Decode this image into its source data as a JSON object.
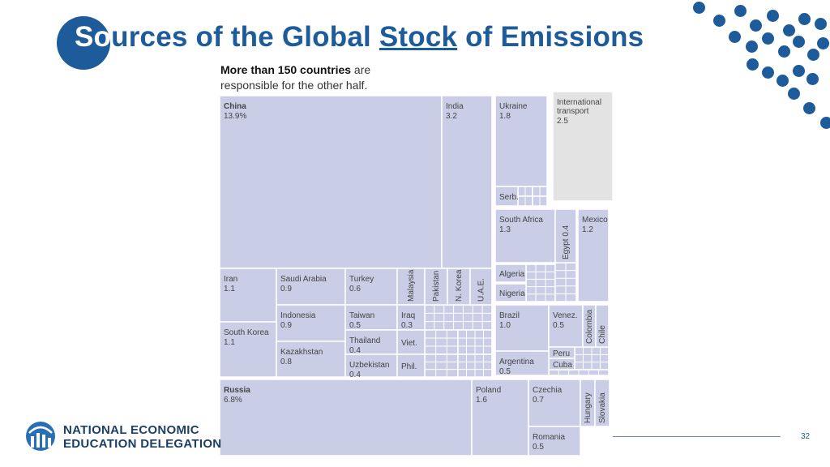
{
  "slide": {
    "title_first": "So",
    "title_rest_a": "urces of the Global ",
    "title_underlined": "Stock",
    "title_rest_b": " of Emissions",
    "subtitle_bold": "More than 150 countries",
    "subtitle_rest": " are responsible for the other half.",
    "page_number": "32"
  },
  "logo": {
    "line1": "NATIONAL ECONOMIC",
    "line2": "EDUCATION DELEGATION"
  },
  "colors": {
    "accent": "#1d5b9a",
    "cell": "#c9cde6",
    "cell_grey": "#e3e3e3",
    "border": "#ffffff"
  },
  "chart_data": {
    "type": "treemap",
    "title": "Sources of the Global Stock of Emissions",
    "unit": "%",
    "items": [
      {
        "name": "China",
        "value": "13.9%",
        "bold": true
      },
      {
        "name": "India",
        "value": "3.2"
      },
      {
        "name": "Ukraine",
        "value": "1.8"
      },
      {
        "name": "International transport",
        "value": "2.5"
      },
      {
        "name": "Serb.",
        "value": ""
      },
      {
        "name": "South Africa",
        "value": "1.3"
      },
      {
        "name": "Egypt 0.4",
        "value": ""
      },
      {
        "name": "Mexico",
        "value": "1.2"
      },
      {
        "name": "Algeria",
        "value": ""
      },
      {
        "name": "Nigeria",
        "value": ""
      },
      {
        "name": "Iran",
        "value": "1.1"
      },
      {
        "name": "Saudi Arabia",
        "value": "0.9"
      },
      {
        "name": "Turkey",
        "value": "0.6"
      },
      {
        "name": "Malaysia",
        "value": ""
      },
      {
        "name": "Pakistan",
        "value": ""
      },
      {
        "name": "N. Korea",
        "value": ""
      },
      {
        "name": "U.A.E.",
        "value": ""
      },
      {
        "name": "Indonesia",
        "value": "0.9"
      },
      {
        "name": "Taiwan",
        "value": "0.5"
      },
      {
        "name": "Iraq",
        "value": "0.3"
      },
      {
        "name": "South Korea",
        "value": "1.1"
      },
      {
        "name": "Kazakhstan",
        "value": "0.8"
      },
      {
        "name": "Thailand",
        "value": "0.4"
      },
      {
        "name": "Viet.",
        "value": ""
      },
      {
        "name": "Uzbekistan",
        "value": "0.4"
      },
      {
        "name": "Phil.",
        "value": ""
      },
      {
        "name": "Brazil",
        "value": "1.0"
      },
      {
        "name": "Venez.",
        "value": "0.5"
      },
      {
        "name": "Colombia",
        "value": ""
      },
      {
        "name": "Chile",
        "value": ""
      },
      {
        "name": "Peru",
        "value": ""
      },
      {
        "name": "Cuba",
        "value": ""
      },
      {
        "name": "Argentina",
        "value": "0.5"
      },
      {
        "name": "Russia",
        "value": "6.8%",
        "bold": true
      },
      {
        "name": "Poland",
        "value": "1.6"
      },
      {
        "name": "Czechia",
        "value": "0.7"
      },
      {
        "name": "Hungary",
        "value": ""
      },
      {
        "name": "Slovakia",
        "value": ""
      },
      {
        "name": "Romania",
        "value": "0.5"
      }
    ]
  }
}
